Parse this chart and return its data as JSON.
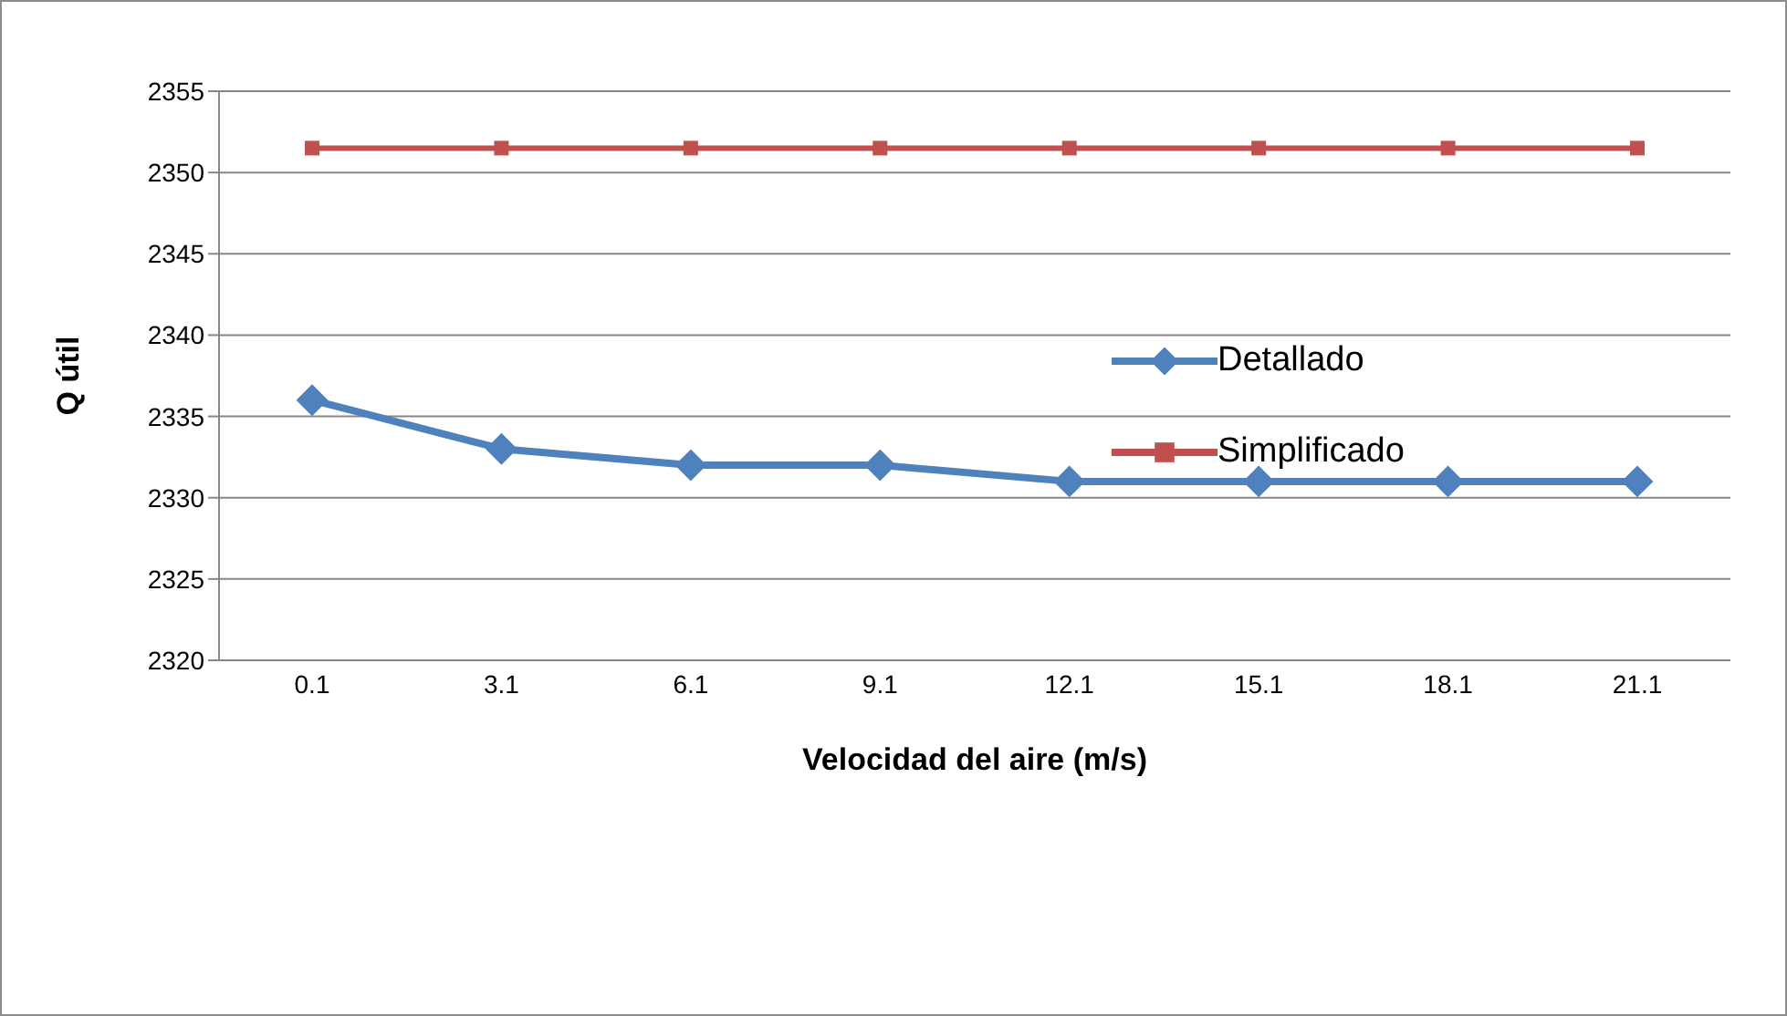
{
  "chart_data": {
    "type": "line",
    "xlabel": "Velocidad del aire (m/s)",
    "ylabel": "Q útil",
    "categories": [
      "0.1",
      "3.1",
      "6.1",
      "9.1",
      "12.1",
      "15.1",
      "18.1",
      "21.1"
    ],
    "series": [
      {
        "name": "Detallado",
        "color": "#4f81bd",
        "marker": "diamond",
        "values": [
          2336,
          2333,
          2332,
          2332,
          2331,
          2331,
          2331,
          2331
        ]
      },
      {
        "name": "Simplificado",
        "color": "#c0504d",
        "marker": "square",
        "values": [
          2351.5,
          2351.5,
          2351.5,
          2351.5,
          2351.5,
          2351.5,
          2351.5,
          2351.5
        ]
      }
    ],
    "ylim": [
      2320,
      2355
    ],
    "yticks": [
      2320,
      2325,
      2330,
      2335,
      2340,
      2345,
      2350,
      2355
    ],
    "grid": "y",
    "legend": "right",
    "line_style": "solid"
  }
}
